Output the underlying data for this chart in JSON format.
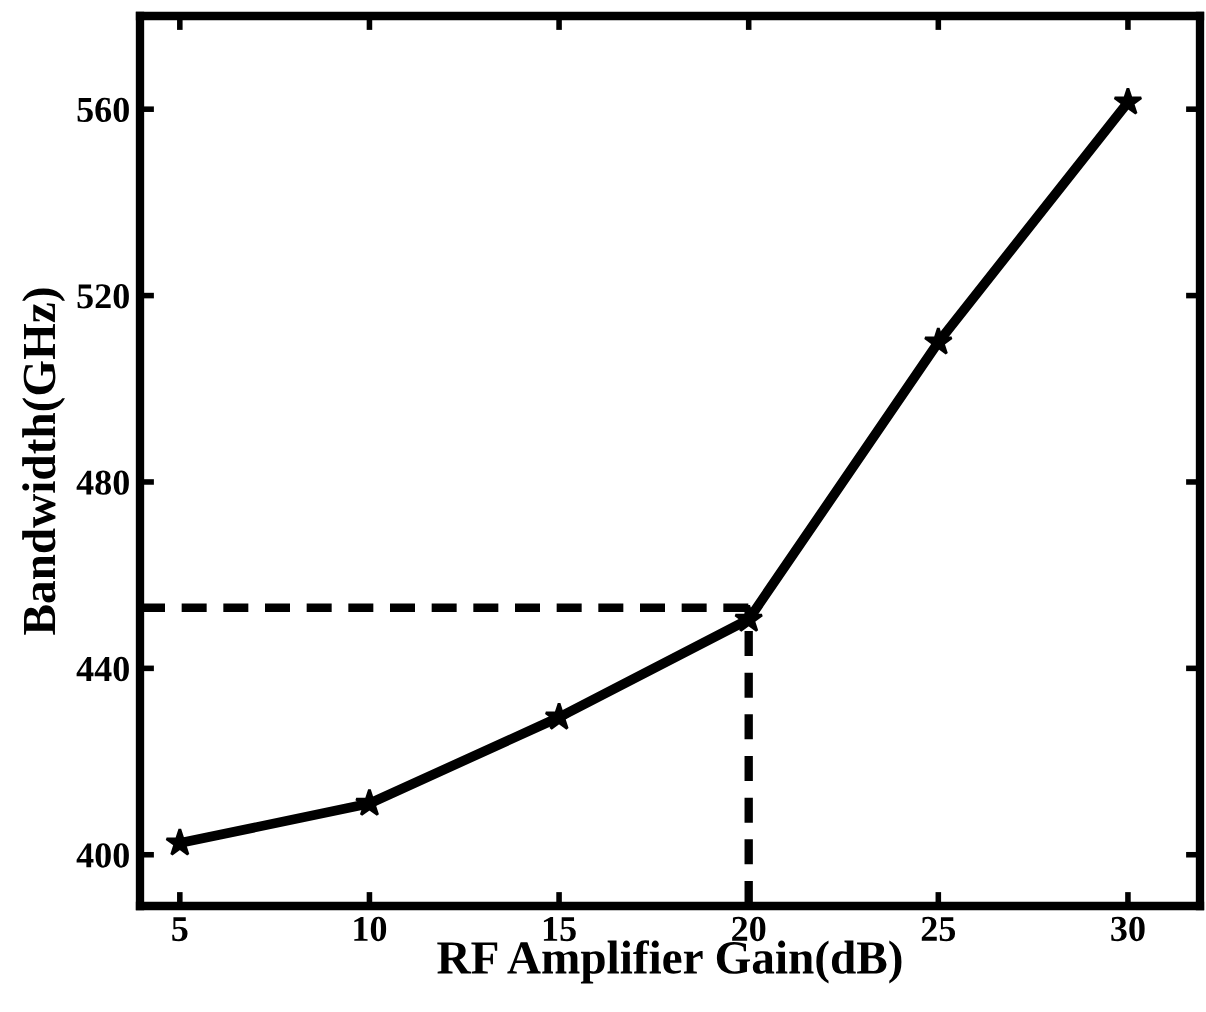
{
  "chart_data": {
    "type": "line",
    "xlabel": "RF Amplifier Gain(dB)",
    "ylabel": "Bandwidth(GHz)",
    "x": [
      5,
      10,
      15,
      20,
      25,
      30
    ],
    "series": [
      {
        "color": "#000000",
        "values": [
          402.5,
          411,
          429.5,
          450.5,
          510,
          561.5
        ]
      }
    ],
    "xlim": [
      3.95,
      31.9
    ],
    "ylim": [
      389,
      580
    ],
    "xticks": [
      5,
      10,
      15,
      20,
      25,
      30
    ],
    "yticks": [
      400,
      440,
      480,
      520,
      560
    ],
    "marker": "star",
    "line_style": "solid",
    "grid": false,
    "legend": false,
    "ref_lines": [
      {
        "axis": "y",
        "value": 453,
        "line_style": "dashed",
        "color": "#000000"
      },
      {
        "axis": "x",
        "value": 20,
        "line_style": "dashed",
        "color": "#000000"
      }
    ]
  }
}
